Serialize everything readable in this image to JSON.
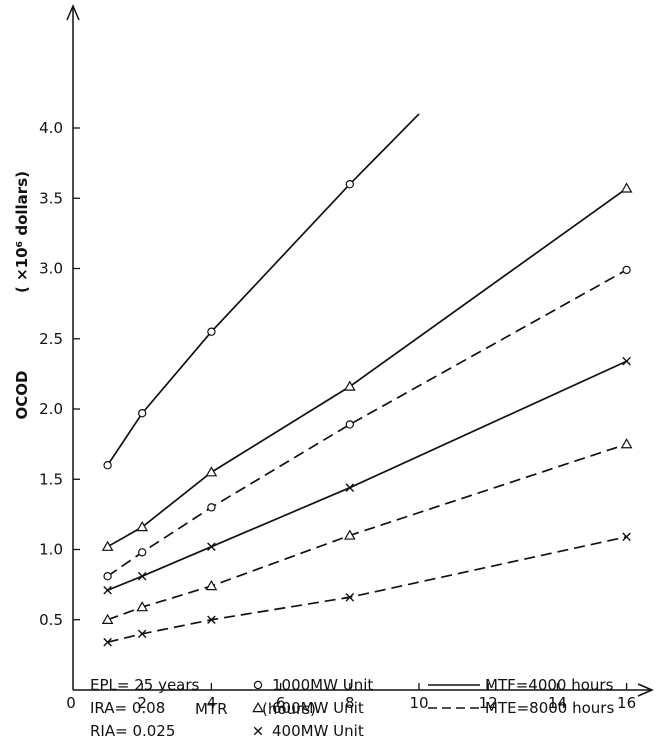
{
  "chart_data": {
    "type": "line",
    "xlabel": "MTR",
    "xlabel_unit": "(hours)",
    "ylabel": "OCOD",
    "ylabel_unit": "( ×10⁶ dollars)",
    "xlim": [
      0,
      17
    ],
    "ylim": [
      0,
      4.5
    ],
    "x_ticks": [
      0,
      2,
      4,
      6,
      8,
      10,
      12,
      14,
      16
    ],
    "x_tick_labels": [
      "0",
      "2",
      "4",
      "6",
      "8",
      "10",
      "12",
      "14",
      "16"
    ],
    "y_ticks": [
      0.5,
      1.0,
      1.5,
      2.0,
      2.5,
      3.0,
      3.5,
      4.0
    ],
    "y_tick_labels": [
      "0.5",
      "1.0",
      "1.5",
      "2.0",
      "2.5",
      "3.0",
      "3.5",
      "4.0"
    ],
    "series": [
      {
        "unit": "1000MW",
        "mtf": "4000",
        "style": "solid",
        "marker": "circle",
        "points": [
          [
            1,
            1.6
          ],
          [
            2,
            1.97
          ],
          [
            4,
            2.55
          ],
          [
            8,
            3.6
          ],
          [
            10,
            4.1
          ]
        ],
        "marked": [
          true,
          true,
          true,
          true,
          false
        ]
      },
      {
        "unit": "600MW",
        "mtf": "4000",
        "style": "solid",
        "marker": "triangle",
        "points": [
          [
            1,
            1.02
          ],
          [
            2,
            1.16
          ],
          [
            4,
            1.55
          ],
          [
            8,
            2.16
          ],
          [
            16,
            3.57
          ]
        ],
        "marked": [
          true,
          true,
          true,
          true,
          true
        ]
      },
      {
        "unit": "400MW",
        "mtf": "4000",
        "style": "solid",
        "marker": "x",
        "points": [
          [
            1,
            0.71
          ],
          [
            2,
            0.81
          ],
          [
            4,
            1.02
          ],
          [
            8,
            1.44
          ],
          [
            16,
            2.34
          ]
        ],
        "marked": [
          true,
          true,
          true,
          true,
          true
        ]
      },
      {
        "unit": "1000MW",
        "mtf": "8000",
        "style": "dashed",
        "marker": "circle",
        "points": [
          [
            1,
            0.81
          ],
          [
            2,
            0.98
          ],
          [
            4,
            1.3
          ],
          [
            8,
            1.89
          ],
          [
            16,
            2.99
          ]
        ],
        "marked": [
          true,
          true,
          true,
          true,
          true
        ]
      },
      {
        "unit": "600MW",
        "mtf": "8000",
        "style": "dashed",
        "marker": "triangle",
        "points": [
          [
            1,
            0.5
          ],
          [
            2,
            0.59
          ],
          [
            4,
            0.74
          ],
          [
            8,
            1.1
          ],
          [
            16,
            1.75
          ]
        ],
        "marked": [
          true,
          true,
          true,
          true,
          true
        ]
      },
      {
        "unit": "400MW",
        "mtf": "8000",
        "style": "dashed",
        "marker": "x",
        "points": [
          [
            1,
            0.34
          ],
          [
            2,
            0.4
          ],
          [
            4,
            0.5
          ],
          [
            8,
            0.66
          ],
          [
            16,
            1.09
          ]
        ],
        "marked": [
          true,
          true,
          true,
          true,
          true
        ]
      }
    ],
    "parameters": [
      "EPL= 25 years",
      "IRA= 0.08",
      "RIA= 0.025"
    ],
    "legend_markers": [
      {
        "marker": "circle",
        "label": "1000MW  Unit"
      },
      {
        "marker": "triangle",
        "label": "600MW  Unit"
      },
      {
        "marker": "x",
        "label": "400MW  Unit"
      }
    ],
    "legend_lines": [
      {
        "style": "solid",
        "label": "MTF=4000 hours"
      },
      {
        "style": "dashed",
        "label": "MTE=8000 hours"
      }
    ],
    "grid": false
  }
}
